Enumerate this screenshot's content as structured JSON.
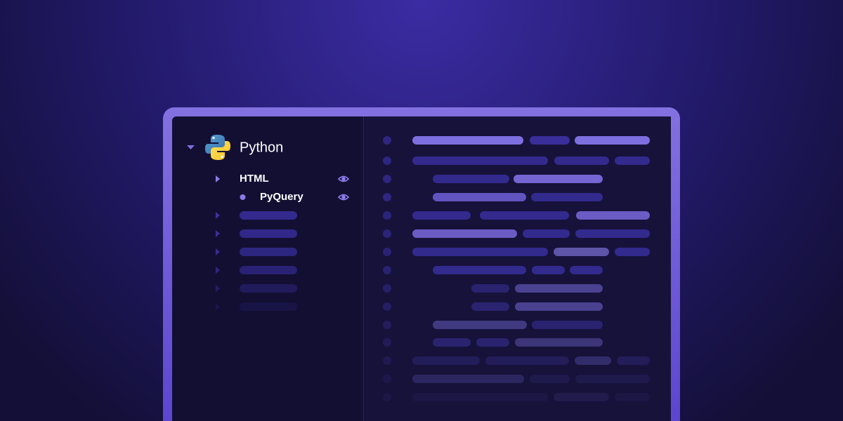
{
  "sidebar": {
    "root": "Python",
    "items": [
      "HTML",
      "PyQuery"
    ]
  }
}
